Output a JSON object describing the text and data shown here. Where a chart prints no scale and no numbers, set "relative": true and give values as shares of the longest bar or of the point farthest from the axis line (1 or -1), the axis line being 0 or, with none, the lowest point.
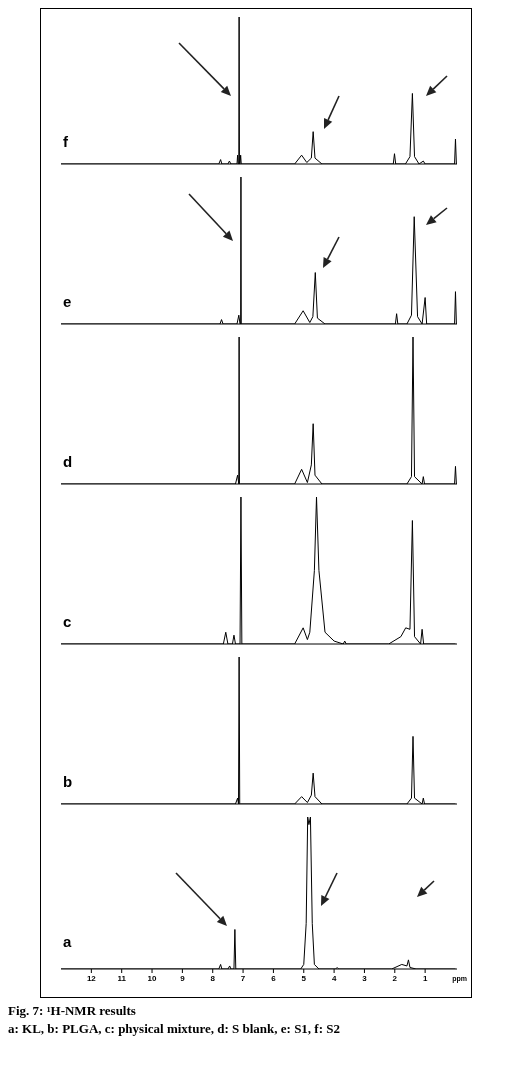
{
  "chart_data": [
    {
      "type": "line",
      "title": "f",
      "relative": true,
      "xlim": [
        13,
        -0.05
      ],
      "tick_labels": false,
      "series": [
        {
          "color": "#000000",
          "x": [
            13,
            7.8,
            7.74,
            7.7,
            7.5,
            7.45,
            7.4,
            7.2,
            7.18,
            7.16,
            7.14,
            7.13,
            7.12,
            7.1,
            7.08,
            7.06,
            5.3,
            5.07,
            4.9,
            4.75,
            4.69,
            4.63,
            4.4,
            2.05,
            2.01,
            1.97,
            1.65,
            1.5,
            1.42,
            1.35,
            1.2,
            1.06,
            1.0,
            0.03,
            0.0,
            -0.03
          ],
          "values": [
            0,
            0,
            0.03,
            0,
            0,
            0.02,
            0,
            0,
            0.06,
            0,
            0,
            1,
            0,
            0,
            0.06,
            0,
            0,
            0.06,
            0.01,
            0.04,
            0.22,
            0.04,
            0,
            0,
            0.07,
            0,
            0,
            0.05,
            0.48,
            0.05,
            0,
            0.02,
            0,
            0,
            0.17,
            0
          ]
        }
      ]
    },
    {
      "type": "line",
      "title": "e",
      "relative": true,
      "xlim": [
        13,
        -0.05
      ],
      "tick_labels": false,
      "series": [
        {
          "color": "#000000",
          "x": [
            13,
            7.76,
            7.71,
            7.66,
            7.2,
            7.14,
            7.1,
            7.08,
            7.07,
            7.06,
            5.3,
            5.02,
            4.8,
            4.7,
            4.62,
            4.55,
            4.3,
            1.98,
            1.94,
            1.9,
            1.6,
            1.45,
            1.36,
            1.25,
            1.1,
            1.0,
            0.95,
            0.03,
            0.0,
            -0.03
          ],
          "values": [
            0,
            0,
            0.03,
            0,
            0,
            0.06,
            0,
            0,
            1,
            0,
            0,
            0.09,
            0.01,
            0.05,
            0.35,
            0.04,
            0,
            0,
            0.07,
            0,
            0,
            0.06,
            0.73,
            0.05,
            0,
            0.18,
            0,
            0,
            0.22,
            0
          ]
        }
      ]
    },
    {
      "type": "line",
      "title": "d",
      "relative": true,
      "xlim": [
        13,
        -0.05
      ],
      "tick_labels": false,
      "series": [
        {
          "color": "#000000",
          "x": [
            13,
            7.25,
            7.18,
            7.14,
            7.13,
            7.12,
            7.08,
            5.3,
            5.07,
            4.88,
            4.75,
            4.69,
            4.63,
            4.4,
            1.6,
            1.45,
            1.4,
            1.35,
            1.1,
            1.06,
            1.02,
            0.03,
            0.0,
            -0.03
          ],
          "values": [
            0,
            0,
            0.06,
            0,
            1,
            0,
            0,
            0,
            0.1,
            0.01,
            0.13,
            0.41,
            0.06,
            0,
            0,
            0.05,
            1,
            0.05,
            0,
            0.05,
            0,
            0,
            0.12,
            0
          ]
        }
      ]
    },
    {
      "type": "line",
      "title": "c",
      "relative": true,
      "xlim": [
        13,
        -0.05
      ],
      "tick_labels": false,
      "series": [
        {
          "color": "#000000",
          "x": [
            13,
            7.65,
            7.57,
            7.5,
            7.35,
            7.3,
            7.25,
            7.1,
            7.07,
            7.04,
            5.3,
            5.02,
            4.88,
            4.8,
            4.65,
            4.58,
            4.5,
            4.3,
            4.0,
            3.7,
            3.65,
            3.6,
            2.2,
            1.8,
            1.64,
            1.5,
            1.42,
            1.35,
            1.15,
            1.1,
            1.05,
            0.0
          ],
          "values": [
            0,
            0,
            0.08,
            0,
            0,
            0.06,
            0,
            0,
            1,
            0,
            0,
            0.11,
            0.03,
            0.08,
            0.5,
            1,
            0.5,
            0.08,
            0.02,
            0,
            0.02,
            0,
            0,
            0.05,
            0.11,
            0.1,
            0.84,
            0.05,
            0,
            0.1,
            0,
            0
          ]
        }
      ]
    },
    {
      "type": "line",
      "title": "b",
      "relative": true,
      "xlim": [
        13,
        -0.05
      ],
      "tick_labels": false,
      "series": [
        {
          "color": "#000000",
          "x": [
            13,
            7.25,
            7.18,
            7.15,
            7.13,
            7.11,
            7.08,
            5.3,
            5.07,
            4.88,
            4.75,
            4.69,
            4.63,
            4.4,
            1.6,
            1.45,
            1.4,
            1.35,
            1.1,
            1.06,
            1.02,
            0.0
          ],
          "values": [
            0,
            0,
            0.04,
            0,
            1,
            0,
            0,
            0,
            0.05,
            0.01,
            0.06,
            0.21,
            0.05,
            0,
            0,
            0.04,
            0.46,
            0.04,
            0,
            0.04,
            0,
            0
          ]
        }
      ]
    },
    {
      "type": "line",
      "title": "a",
      "relative": true,
      "xlim": [
        13,
        -0.05
      ],
      "xticks": [
        12,
        11,
        10,
        9,
        8,
        7,
        6,
        5,
        4,
        3,
        2,
        1
      ],
      "xlabel": "ppm",
      "series": [
        {
          "color": "#000000",
          "x": [
            13,
            7.8,
            7.74,
            7.7,
            7.5,
            7.44,
            7.4,
            7.3,
            7.27,
            7.24,
            5.1,
            5.0,
            4.92,
            4.87,
            4.83,
            4.78,
            4.72,
            4.65,
            4.5,
            3.95,
            3.9,
            3.85,
            2.1,
            1.77,
            1.6,
            1.55,
            1.5,
            1.3,
            0.0
          ],
          "values": [
            0,
            0,
            0.03,
            0,
            0,
            0.02,
            0,
            0,
            0.26,
            0,
            0,
            0.03,
            0.3,
            1,
            0.95,
            1,
            0.3,
            0.03,
            0,
            0,
            0.01,
            0,
            0,
            0.03,
            0.02,
            0.06,
            0.01,
            0,
            0
          ]
        }
      ],
      "annotations": [
        "Fig. 7: ¹H-NMR results",
        "a: KL, b: PLGA, c: physical mixture, d: S blank, e: S1, f: S2"
      ]
    }
  ]
}
